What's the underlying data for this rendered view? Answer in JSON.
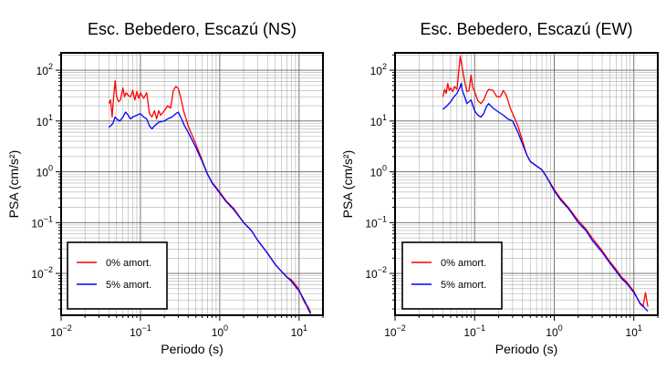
{
  "chart_data": [
    {
      "type": "line",
      "title": "Esc. Bebedero, Escazú (NS)",
      "xlabel": "Periodo (s)",
      "ylabel": "PSA (cm/s²)",
      "xscale": "log",
      "yscale": "log",
      "xlim": [
        0.01,
        20
      ],
      "ylim": [
        0.0015,
        220
      ],
      "grid": true,
      "legend_position": "bottom-left",
      "xticks": [
        {
          "base": "10",
          "exp": "−2"
        },
        {
          "base": "10",
          "exp": "−1"
        },
        {
          "base": "10",
          "exp": "0"
        },
        {
          "base": "10",
          "exp": "1"
        }
      ],
      "yticks": [
        {
          "base": "10",
          "exp": "2"
        },
        {
          "base": "10",
          "exp": "1"
        },
        {
          "base": "10",
          "exp": "0"
        },
        {
          "base": "10",
          "exp": "−1"
        },
        {
          "base": "10",
          "exp": "−2"
        }
      ],
      "series": [
        {
          "name": "0% amort.",
          "color": "#ff0000",
          "points": [
            [
              0.04,
              22
            ],
            [
              0.042,
              26
            ],
            [
              0.044,
              12
            ],
            [
              0.046,
              30
            ],
            [
              0.048,
              62
            ],
            [
              0.05,
              30
            ],
            [
              0.053,
              24
            ],
            [
              0.056,
              26
            ],
            [
              0.06,
              45
            ],
            [
              0.063,
              30
            ],
            [
              0.066,
              36
            ],
            [
              0.07,
              32
            ],
            [
              0.075,
              30
            ],
            [
              0.08,
              40
            ],
            [
              0.085,
              26
            ],
            [
              0.09,
              38
            ],
            [
              0.095,
              28
            ],
            [
              0.1,
              36
            ],
            [
              0.11,
              28
            ],
            [
              0.12,
              36
            ],
            [
              0.13,
              14
            ],
            [
              0.14,
              12
            ],
            [
              0.15,
              16
            ],
            [
              0.16,
              11
            ],
            [
              0.17,
              16
            ],
            [
              0.18,
              13
            ],
            [
              0.2,
              16
            ],
            [
              0.22,
              20
            ],
            [
              0.24,
              18
            ],
            [
              0.26,
              40
            ],
            [
              0.28,
              48
            ],
            [
              0.3,
              44
            ],
            [
              0.32,
              30
            ],
            [
              0.35,
              16
            ],
            [
              0.4,
              8
            ],
            [
              0.5,
              3.5
            ],
            [
              0.6,
              1.7
            ],
            [
              0.7,
              0.9
            ],
            [
              0.8,
              0.62
            ],
            [
              1.0,
              0.4
            ],
            [
              1.2,
              0.27
            ],
            [
              1.5,
              0.19
            ],
            [
              2.0,
              0.1
            ],
            [
              2.5,
              0.07
            ],
            [
              3,
              0.045
            ],
            [
              4,
              0.025
            ],
            [
              5,
              0.015
            ],
            [
              6,
              0.011
            ],
            [
              7,
              0.0085
            ],
            [
              8,
              0.0075
            ],
            [
              9,
              0.006
            ],
            [
              10,
              0.0048
            ],
            [
              11,
              0.0033
            ],
            [
              12,
              0.0025
            ],
            [
              13,
              0.0022
            ],
            [
              14,
              0.0017
            ]
          ]
        },
        {
          "name": "5% amort.",
          "color": "#0000ff",
          "points": [
            [
              0.04,
              7.5
            ],
            [
              0.042,
              8
            ],
            [
              0.045,
              9
            ],
            [
              0.048,
              12
            ],
            [
              0.05,
              11
            ],
            [
              0.055,
              10
            ],
            [
              0.06,
              12
            ],
            [
              0.065,
              15
            ],
            [
              0.07,
              13
            ],
            [
              0.075,
              11
            ],
            [
              0.08,
              12
            ],
            [
              0.09,
              13
            ],
            [
              0.1,
              14
            ],
            [
              0.11,
              12
            ],
            [
              0.12,
              11
            ],
            [
              0.13,
              8
            ],
            [
              0.14,
              7
            ],
            [
              0.15,
              8
            ],
            [
              0.17,
              9.5
            ],
            [
              0.2,
              10
            ],
            [
              0.22,
              11
            ],
            [
              0.25,
              12
            ],
            [
              0.28,
              14
            ],
            [
              0.3,
              15
            ],
            [
              0.33,
              11
            ],
            [
              0.36,
              8
            ],
            [
              0.4,
              6
            ],
            [
              0.5,
              3
            ],
            [
              0.6,
              1.6
            ],
            [
              0.7,
              0.9
            ],
            [
              0.8,
              0.6
            ],
            [
              1.0,
              0.38
            ],
            [
              1.2,
              0.26
            ],
            [
              1.5,
              0.18
            ],
            [
              2.0,
              0.1
            ],
            [
              2.5,
              0.07
            ],
            [
              3,
              0.045
            ],
            [
              4,
              0.025
            ],
            [
              5,
              0.015
            ],
            [
              6,
              0.011
            ],
            [
              7,
              0.0085
            ],
            [
              8,
              0.007
            ],
            [
              9,
              0.0055
            ],
            [
              10,
              0.0045
            ],
            [
              11,
              0.0035
            ],
            [
              12,
              0.0027
            ],
            [
              13,
              0.002
            ],
            [
              14,
              0.0016
            ]
          ]
        }
      ]
    },
    {
      "type": "line",
      "title": "Esc. Bebedero, Escazú (EW)",
      "xlabel": "Periodo (s)",
      "ylabel": "PSA (cm/s²)",
      "xscale": "log",
      "yscale": "log",
      "xlim": [
        0.01,
        20
      ],
      "ylim": [
        0.0015,
        220
      ],
      "grid": true,
      "legend_position": "bottom-left",
      "xticks": [
        {
          "base": "10",
          "exp": "−2"
        },
        {
          "base": "10",
          "exp": "−1"
        },
        {
          "base": "10",
          "exp": "0"
        },
        {
          "base": "10",
          "exp": "1"
        }
      ],
      "yticks": [
        {
          "base": "10",
          "exp": "2"
        },
        {
          "base": "10",
          "exp": "1"
        },
        {
          "base": "10",
          "exp": "0"
        },
        {
          "base": "10",
          "exp": "−1"
        },
        {
          "base": "10",
          "exp": "−2"
        }
      ],
      "series": [
        {
          "name": "0% amort.",
          "color": "#ff0000",
          "points": [
            [
              0.04,
              30
            ],
            [
              0.042,
              42
            ],
            [
              0.044,
              35
            ],
            [
              0.046,
              55
            ],
            [
              0.048,
              40
            ],
            [
              0.05,
              45
            ],
            [
              0.053,
              38
            ],
            [
              0.056,
              48
            ],
            [
              0.06,
              42
            ],
            [
              0.063,
              90
            ],
            [
              0.066,
              190
            ],
            [
              0.07,
              110
            ],
            [
              0.075,
              60
            ],
            [
              0.08,
              38
            ],
            [
              0.085,
              40
            ],
            [
              0.09,
              80
            ],
            [
              0.095,
              45
            ],
            [
              0.1,
              38
            ],
            [
              0.11,
              25
            ],
            [
              0.12,
              22
            ],
            [
              0.13,
              26
            ],
            [
              0.14,
              35
            ],
            [
              0.15,
              42
            ],
            [
              0.17,
              40
            ],
            [
              0.19,
              30
            ],
            [
              0.21,
              30
            ],
            [
              0.23,
              40
            ],
            [
              0.25,
              32
            ],
            [
              0.28,
              18
            ],
            [
              0.3,
              14
            ],
            [
              0.35,
              8
            ],
            [
              0.4,
              4
            ],
            [
              0.45,
              2.2
            ],
            [
              0.5,
              1.6
            ],
            [
              0.6,
              1.3
            ],
            [
              0.7,
              1.1
            ],
            [
              0.8,
              0.8
            ],
            [
              1.0,
              0.45
            ],
            [
              1.2,
              0.3
            ],
            [
              1.5,
              0.2
            ],
            [
              2.0,
              0.11
            ],
            [
              2.5,
              0.075
            ],
            [
              3,
              0.05
            ],
            [
              4,
              0.028
            ],
            [
              5,
              0.017
            ],
            [
              6,
              0.012
            ],
            [
              7,
              0.0085
            ],
            [
              8,
              0.007
            ],
            [
              9,
              0.0055
            ],
            [
              10,
              0.0045
            ],
            [
              11,
              0.0033
            ],
            [
              12,
              0.0025
            ],
            [
              13,
              0.0022
            ],
            [
              14,
              0.0042
            ],
            [
              15,
              0.0022
            ]
          ]
        },
        {
          "name": "5% amort.",
          "color": "#0000ff",
          "points": [
            [
              0.04,
              17
            ],
            [
              0.045,
              20
            ],
            [
              0.05,
              24
            ],
            [
              0.055,
              30
            ],
            [
              0.06,
              35
            ],
            [
              0.065,
              45
            ],
            [
              0.068,
              55
            ],
            [
              0.07,
              40
            ],
            [
              0.075,
              30
            ],
            [
              0.08,
              22
            ],
            [
              0.09,
              26
            ],
            [
              0.1,
              16
            ],
            [
              0.11,
              13
            ],
            [
              0.12,
              12
            ],
            [
              0.13,
              14
            ],
            [
              0.14,
              19
            ],
            [
              0.15,
              22
            ],
            [
              0.17,
              18
            ],
            [
              0.2,
              15
            ],
            [
              0.23,
              13
            ],
            [
              0.26,
              11
            ],
            [
              0.3,
              10
            ],
            [
              0.35,
              6
            ],
            [
              0.4,
              3.5
            ],
            [
              0.45,
              2.2
            ],
            [
              0.5,
              1.6
            ],
            [
              0.6,
              1.3
            ],
            [
              0.7,
              1.1
            ],
            [
              0.8,
              0.8
            ],
            [
              1.0,
              0.42
            ],
            [
              1.2,
              0.28
            ],
            [
              1.5,
              0.19
            ],
            [
              2.0,
              0.1
            ],
            [
              2.5,
              0.07
            ],
            [
              3,
              0.045
            ],
            [
              4,
              0.026
            ],
            [
              5,
              0.016
            ],
            [
              6,
              0.011
            ],
            [
              7,
              0.008
            ],
            [
              8,
              0.0065
            ],
            [
              9,
              0.0052
            ],
            [
              10,
              0.0042
            ],
            [
              11,
              0.0033
            ],
            [
              12,
              0.0026
            ],
            [
              13,
              0.0023
            ],
            [
              14,
              0.002
            ],
            [
              15,
              0.0018
            ]
          ]
        }
      ]
    }
  ]
}
